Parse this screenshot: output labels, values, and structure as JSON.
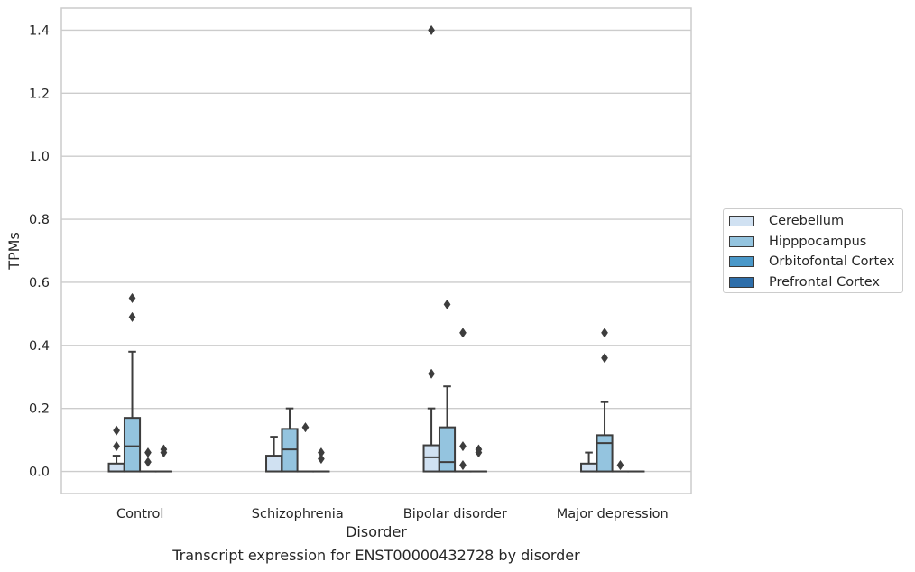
{
  "chart_data": {
    "type": "box",
    "caption": "Transcript expression for ENST00000432728 by disorder",
    "xlabel": "Disorder",
    "ylabel": "TPMs",
    "ylim": [
      -0.07,
      1.47
    ],
    "yticks": [
      0.0,
      0.2,
      0.4,
      0.6,
      0.8,
      1.0,
      1.2,
      1.4
    ],
    "ytick_labels": [
      "0.0",
      "0.2",
      "0.4",
      "0.6",
      "0.8",
      "1.0",
      "1.2",
      "1.4"
    ],
    "grid": true,
    "legend_position": "right",
    "categories": [
      "Control",
      "Schizophrenia",
      "Bipolar disorder",
      "Major depression"
    ],
    "series": [
      {
        "name": "Cerebellum",
        "color": "#d0e1f2",
        "boxes": [
          {
            "q1": 0.0,
            "median": 0.0,
            "q3": 0.025,
            "whisker_low": 0.0,
            "whisker_high": 0.05,
            "outliers": [
              0.08,
              0.13
            ]
          },
          {
            "q1": 0.0,
            "median": 0.0,
            "q3": 0.05,
            "whisker_low": 0.0,
            "whisker_high": 0.11,
            "outliers": []
          },
          {
            "q1": 0.0,
            "median": 0.045,
            "q3": 0.083,
            "whisker_low": 0.0,
            "whisker_high": 0.2,
            "outliers": [
              0.31,
              1.4
            ]
          },
          {
            "q1": 0.0,
            "median": 0.0,
            "q3": 0.025,
            "whisker_low": 0.0,
            "whisker_high": 0.06,
            "outliers": []
          }
        ]
      },
      {
        "name": "Hipppocampus",
        "color": "#94c4df",
        "boxes": [
          {
            "q1": 0.0,
            "median": 0.08,
            "q3": 0.17,
            "whisker_low": 0.0,
            "whisker_high": 0.38,
            "outliers": [
              0.49,
              0.55
            ]
          },
          {
            "q1": 0.0,
            "median": 0.07,
            "q3": 0.135,
            "whisker_low": 0.0,
            "whisker_high": 0.2,
            "outliers": []
          },
          {
            "q1": 0.0,
            "median": 0.03,
            "q3": 0.14,
            "whisker_low": 0.0,
            "whisker_high": 0.27,
            "outliers": [
              0.53
            ]
          },
          {
            "q1": 0.0,
            "median": 0.09,
            "q3": 0.115,
            "whisker_low": 0.0,
            "whisker_high": 0.22,
            "outliers": [
              0.36,
              0.44
            ]
          }
        ]
      },
      {
        "name": "Orbitofontal Cortex",
        "color": "#4a98c9",
        "boxes": [
          {
            "q1": 0.0,
            "median": 0.0,
            "q3": 0.0,
            "whisker_low": 0.0,
            "whisker_high": 0.0,
            "outliers": [
              0.03,
              0.06
            ]
          },
          {
            "q1": 0.0,
            "median": 0.0,
            "q3": 0.0,
            "whisker_low": 0.0,
            "whisker_high": 0.0,
            "outliers": [
              0.14
            ]
          },
          {
            "q1": 0.0,
            "median": 0.0,
            "q3": 0.0,
            "whisker_low": 0.0,
            "whisker_high": 0.0,
            "outliers": [
              0.02,
              0.08,
              0.44
            ]
          },
          {
            "q1": 0.0,
            "median": 0.0,
            "q3": 0.0,
            "whisker_low": 0.0,
            "whisker_high": 0.0,
            "outliers": [
              0.02
            ]
          }
        ]
      },
      {
        "name": "Prefrontal Cortex",
        "color": "#2d6eaa",
        "boxes": [
          {
            "q1": 0.0,
            "median": 0.0,
            "q3": 0.0,
            "whisker_low": 0.0,
            "whisker_high": 0.0,
            "outliers": [
              0.06,
              0.07
            ]
          },
          {
            "q1": 0.0,
            "median": 0.0,
            "q3": 0.0,
            "whisker_low": 0.0,
            "whisker_high": 0.0,
            "outliers": [
              0.04,
              0.06
            ]
          },
          {
            "q1": 0.0,
            "median": 0.0,
            "q3": 0.0,
            "whisker_low": 0.0,
            "whisker_high": 0.0,
            "outliers": [
              0.06,
              0.07
            ]
          },
          {
            "q1": 0.0,
            "median": 0.0,
            "q3": 0.0,
            "whisker_low": 0.0,
            "whisker_high": 0.0,
            "outliers": []
          }
        ]
      }
    ]
  }
}
